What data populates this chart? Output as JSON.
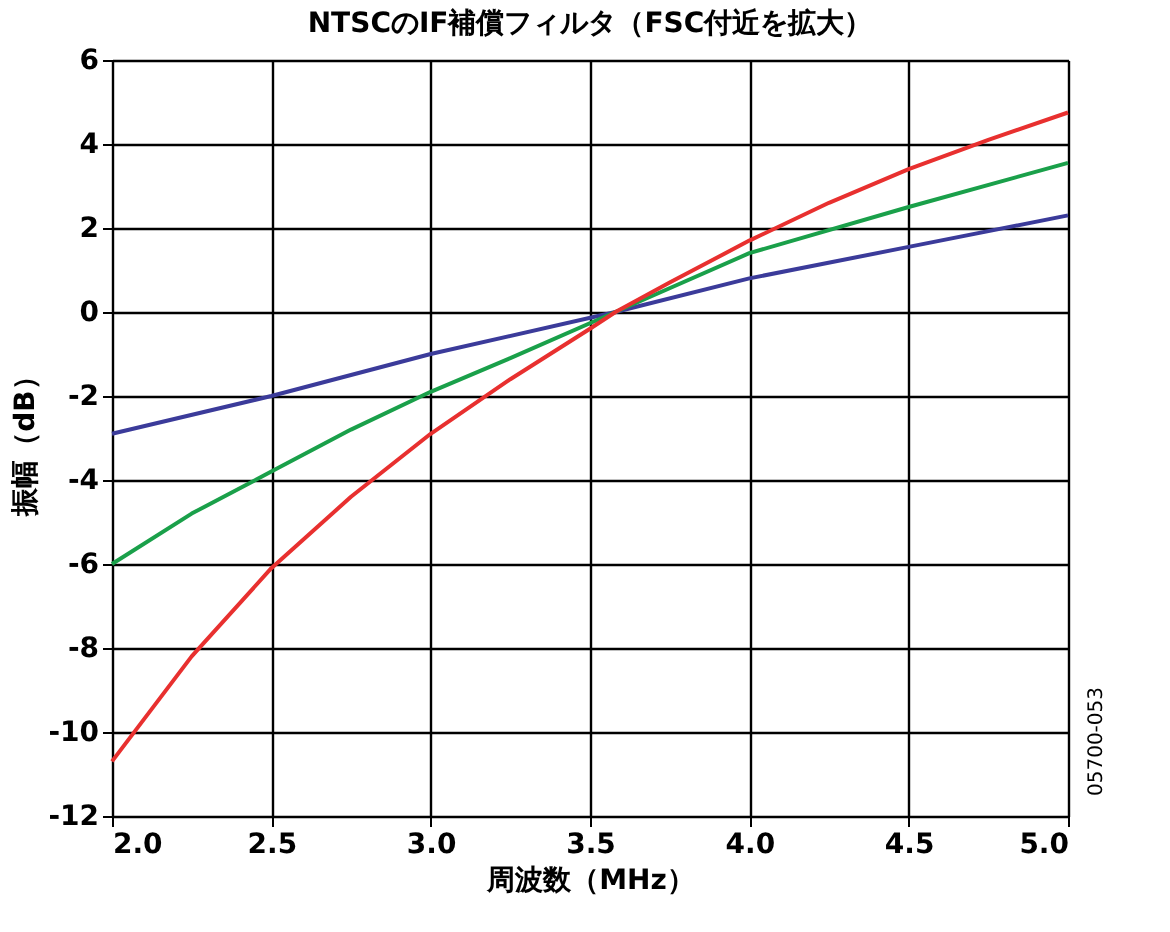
{
  "chart_data": {
    "type": "line",
    "title": "NTSCのIF補償フィルタ（FSC付近を拡大）",
    "xlabel": "周波数（MHz）",
    "ylabel": "振幅（dB）",
    "xlim": [
      2.0,
      5.0
    ],
    "xticks": [
      {
        "value": 2,
        "label": "2.0"
      },
      {
        "value": 2.5,
        "label": "2.5"
      },
      {
        "value": 3,
        "label": "3.0"
      },
      {
        "value": 3.5,
        "label": "3.5"
      },
      {
        "value": 4,
        "label": "4.0"
      },
      {
        "value": 4.5,
        "label": "4.5"
      },
      {
        "value": 5,
        "label": "5.0"
      }
    ],
    "ylim": [
      -12,
      6
    ],
    "yticks": [
      -12,
      -10,
      -8,
      -6,
      -4,
      -2,
      0,
      2,
      4,
      6
    ],
    "grid": true,
    "legend": false,
    "line_style": "solid",
    "marker": "none",
    "series": [
      {
        "color": "#3b3b9a",
        "x": [
          2.0,
          2.5,
          3.0,
          3.58,
          4.0,
          4.5,
          5.0
        ],
        "values": [
          -2.9,
          -2.0,
          -1.0,
          0,
          0.8,
          1.55,
          2.3
        ]
      },
      {
        "color": "#1aa04a",
        "x": [
          2.0,
          2.25,
          2.5,
          2.75,
          3.0,
          3.25,
          3.58,
          4.0,
          4.5,
          5.0
        ],
        "values": [
          -6.0,
          -4.8,
          -3.8,
          -2.8,
          -1.9,
          -1.1,
          0,
          1.4,
          2.5,
          3.55
        ]
      },
      {
        "color": "#e8302f",
        "x": [
          2.0,
          2.25,
          2.5,
          2.75,
          3.0,
          3.25,
          3.5,
          3.58,
          3.75,
          4.0,
          4.25,
          4.5,
          4.75,
          5.0
        ],
        "values": [
          -10.7,
          -8.2,
          -6.1,
          -4.4,
          -2.9,
          -1.6,
          -0.4,
          0,
          0.7,
          1.7,
          2.6,
          3.4,
          4.1,
          4.75
        ]
      }
    ],
    "annotations": [
      "05700-053"
    ]
  }
}
